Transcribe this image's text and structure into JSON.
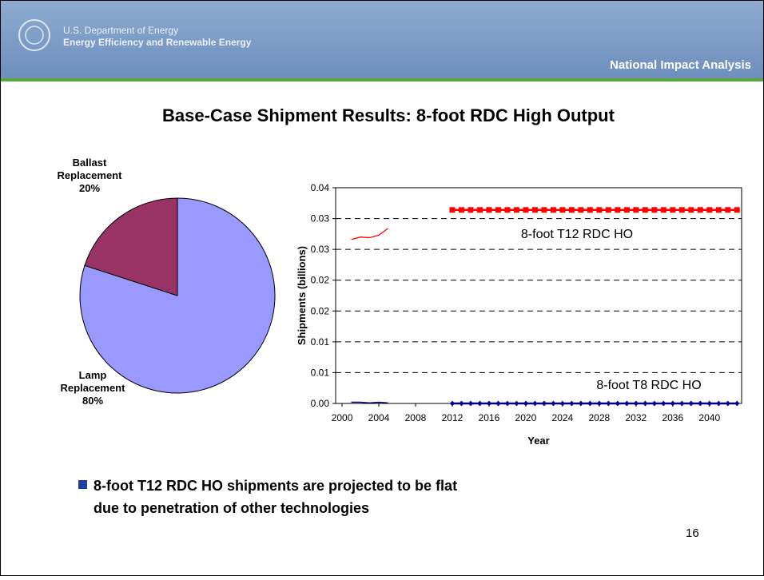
{
  "header": {
    "org": "U.S. Department of Energy",
    "office": "Energy Efficiency and Renewable Energy",
    "section": "National Impact Analysis"
  },
  "title": "Base-Case Shipment Results: 8-foot RDC High Output",
  "bullet": "8-foot T12 RDC HO shipments are projected to be flat due to penetration of other technologies",
  "page_number": "16",
  "chart_data": [
    {
      "type": "pie",
      "categories": [
        "Lamp Replacement",
        "Ballast Replacement"
      ],
      "values": [
        80,
        20
      ],
      "value_labels": [
        "80%",
        "20%"
      ],
      "colors": [
        "#9999ff",
        "#993366"
      ]
    },
    {
      "type": "line",
      "x_label": "Year",
      "y_label": "Shipments (billions)",
      "xlim": [
        1999.3,
        2043.5
      ],
      "xticks": [
        2000,
        2004,
        2008,
        2012,
        2016,
        2020,
        2024,
        2028,
        2032,
        2036,
        2040
      ],
      "ylim": [
        0,
        0.035
      ],
      "yticks": [
        {
          "value": 0,
          "label": "0.00"
        },
        {
          "value": 0.005,
          "label": "0.01"
        },
        {
          "value": 0.01,
          "label": "0.01"
        },
        {
          "value": 0.015,
          "label": "0.02"
        },
        {
          "value": 0.02,
          "label": "0.02"
        },
        {
          "value": 0.025,
          "label": "0.03"
        },
        {
          "value": 0.03,
          "label": "0.03"
        },
        {
          "value": 0.035,
          "label": "0.04"
        }
      ],
      "grid": true,
      "x": [
        2001,
        2002,
        2003,
        2004,
        2005,
        2006,
        2007,
        2008,
        2009,
        2010,
        2011,
        2012,
        2013,
        2014,
        2015,
        2016,
        2017,
        2018,
        2019,
        2020,
        2021,
        2022,
        2023,
        2024,
        2025,
        2026,
        2027,
        2028,
        2029,
        2030,
        2031,
        2032,
        2033,
        2034,
        2035,
        2036,
        2037,
        2038,
        2039,
        2040,
        2041,
        2042,
        2043
      ],
      "series": [
        {
          "name": "8-foot T12 RDC HO",
          "color": "#ff0000",
          "marker": "square",
          "values": [
            0.0266,
            0.027,
            0.0269,
            0.0273,
            0.0284,
            null,
            null,
            null,
            null,
            null,
            null,
            0.0314,
            0.0314,
            0.0314,
            0.0314,
            0.0314,
            0.0314,
            0.0314,
            0.0314,
            0.0314,
            0.0314,
            0.0314,
            0.0314,
            0.0314,
            0.0314,
            0.0314,
            0.0314,
            0.0314,
            0.0314,
            0.0314,
            0.0314,
            0.0314,
            0.0314,
            0.0314,
            0.0314,
            0.0314,
            0.0314,
            0.0314,
            0.0314,
            0.0314,
            0.0314,
            0.0314,
            0.0314
          ]
        },
        {
          "name": "8-foot T8 RDC HO",
          "color": "#000080",
          "marker": "diamond",
          "values": [
            0.0002,
            0.0002,
            0.0001,
            0.0002,
            0.0001,
            null,
            null,
            null,
            null,
            null,
            null,
            0,
            0,
            0,
            0,
            0,
            0,
            0,
            0,
            0,
            0,
            0,
            0,
            0,
            0,
            0,
            0,
            0,
            0,
            0,
            0,
            0,
            0,
            0,
            0,
            0,
            0,
            0,
            0,
            0,
            0,
            0,
            0
          ]
        }
      ]
    }
  ]
}
